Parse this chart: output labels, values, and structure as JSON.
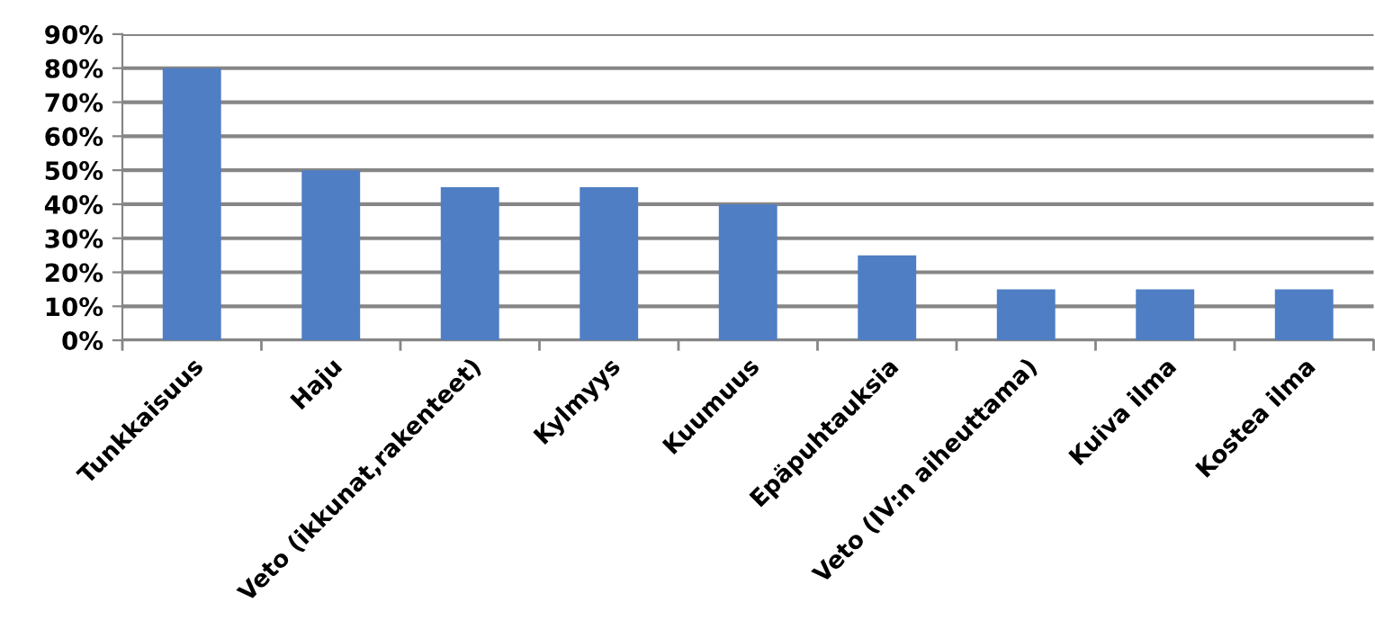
{
  "chart_data": {
    "type": "bar",
    "categories": [
      "Tunkkaisuus",
      "Haju",
      "Veto (ikkunat,rakenteet)",
      "Kylmyys",
      "Kuumuus",
      "Epäpuhtauksia",
      "Veto (IV:n aiheuttama)",
      "Kuiva ilma",
      "Kostea ilma"
    ],
    "values": [
      80,
      50,
      45,
      45,
      40,
      25,
      15,
      15,
      15
    ],
    "color": "#4f7ec4",
    "ylim": [
      0,
      90
    ],
    "yticks": [
      {
        "value": 0,
        "label": "0%"
      },
      {
        "value": 10,
        "label": "10%"
      },
      {
        "value": 20,
        "label": "20%"
      },
      {
        "value": 30,
        "label": "30%"
      },
      {
        "value": 40,
        "label": "40%"
      },
      {
        "value": 50,
        "label": "50%"
      },
      {
        "value": 60,
        "label": "60%"
      },
      {
        "value": 70,
        "label": "70%"
      },
      {
        "value": 80,
        "label": "80%"
      },
      {
        "value": 90,
        "label": "90%"
      }
    ],
    "grid": "y",
    "legend": false
  }
}
